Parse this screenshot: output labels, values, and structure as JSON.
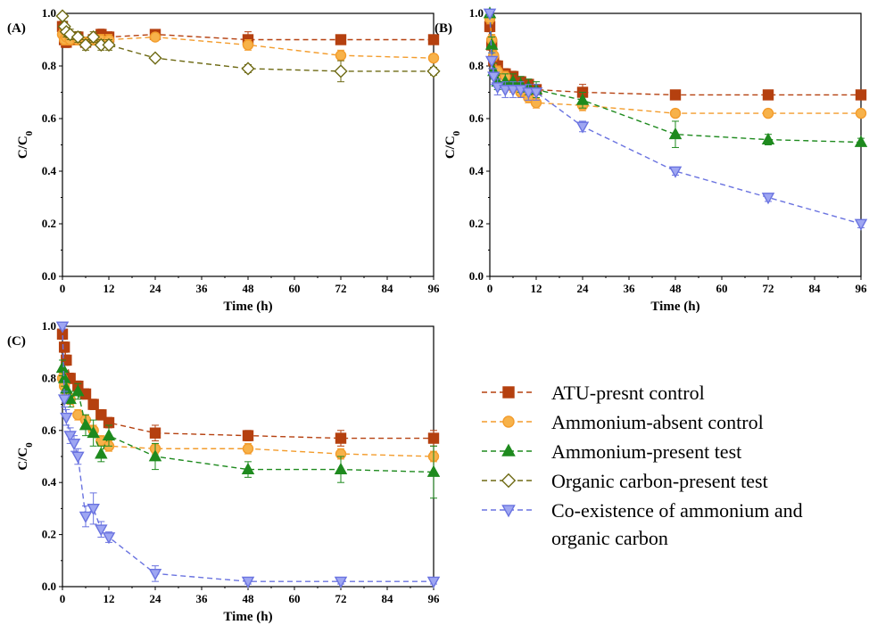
{
  "legend": {
    "items": [
      {
        "key": "atu",
        "label": "ATU-presnt control",
        "color": "#b5400f",
        "fill": "#b5400f",
        "marker": "square"
      },
      {
        "key": "absent",
        "label": "Ammonium-absent control",
        "color": "#f39c2c",
        "fill": "#f7b24a",
        "marker": "circle"
      },
      {
        "key": "present",
        "label": "Ammonium-present test",
        "color": "#1e8a1e",
        "fill": "#1e8a1e",
        "marker": "triangle-up"
      },
      {
        "key": "organic",
        "label": "Organic carbon-present test",
        "color": "#6e6a14",
        "fill": "none",
        "marker": "diamond"
      },
      {
        "key": "coexist",
        "label": "Co-existence of ammonium and organic carbon",
        "label_lines": [
          "Co-existence of ammonium and",
          "organic carbon"
        ],
        "color": "#6a73e0",
        "fill": "#9ea6f2",
        "marker": "triangle-down"
      }
    ]
  },
  "chart_data": [
    {
      "panel": "(A)",
      "type": "line",
      "xlabel": "Time (h)",
      "ylabel": "C/C0",
      "xlim": [
        0,
        96
      ],
      "ylim": [
        0,
        1.0
      ],
      "xticks": [
        0,
        12,
        24,
        36,
        48,
        60,
        72,
        84,
        96
      ],
      "yticks": [
        0.0,
        0.2,
        0.4,
        0.6,
        0.8,
        1.0
      ],
      "ytick_labels": [
        "0.0",
        "0.2",
        "0.4",
        "0.6",
        "0.8",
        "1.0"
      ],
      "series": [
        {
          "key": "atu",
          "points": [
            [
              0,
              0.95
            ],
            [
              0.5,
              0.9
            ],
            [
              1,
              0.89
            ],
            [
              2,
              0.9
            ],
            [
              4,
              0.91
            ],
            [
              6,
              0.89
            ],
            [
              8,
              0.9
            ],
            [
              10,
              0.92
            ],
            [
              12,
              0.91
            ],
            [
              24,
              0.92
            ],
            [
              48,
              0.9
            ],
            [
              72,
              0.9
            ],
            [
              96,
              0.9
            ]
          ],
          "errors": [
            0.02,
            0.02,
            0.02,
            0.02,
            0.02,
            0.02,
            0.02,
            0.02,
            0.02,
            0.015,
            0.03,
            0.015,
            0.015
          ]
        },
        {
          "key": "absent",
          "points": [
            [
              0,
              0.92
            ],
            [
              0.5,
              0.9
            ],
            [
              1,
              0.91
            ],
            [
              2,
              0.9
            ],
            [
              4,
              0.9
            ],
            [
              6,
              0.89
            ],
            [
              8,
              0.9
            ],
            [
              10,
              0.9
            ],
            [
              12,
              0.9
            ],
            [
              24,
              0.91
            ],
            [
              48,
              0.88
            ],
            [
              72,
              0.84
            ],
            [
              96,
              0.83
            ]
          ],
          "errors": [
            0.02,
            0.02,
            0.02,
            0.02,
            0.02,
            0.02,
            0.02,
            0.02,
            0.02,
            0.015,
            0.02,
            0.02,
            0.015
          ]
        },
        {
          "key": "organic",
          "points": [
            [
              0,
              0.99
            ],
            [
              0.5,
              0.95
            ],
            [
              1,
              0.93
            ],
            [
              2,
              0.92
            ],
            [
              4,
              0.91
            ],
            [
              6,
              0.88
            ],
            [
              8,
              0.91
            ],
            [
              10,
              0.88
            ],
            [
              12,
              0.88
            ],
            [
              24,
              0.83
            ],
            [
              48,
              0.79
            ],
            [
              72,
              0.78
            ],
            [
              96,
              0.78
            ]
          ],
          "errors": [
            0.01,
            0.02,
            0.02,
            0.02,
            0.02,
            0.02,
            0.02,
            0.02,
            0.02,
            0.01,
            0.015,
            0.04,
            0.015
          ]
        }
      ]
    },
    {
      "panel": "(B)",
      "type": "line",
      "xlabel": "Time (h)",
      "ylabel": "C/C0",
      "xlim": [
        0,
        96
      ],
      "ylim": [
        0,
        1.0
      ],
      "xticks": [
        0,
        12,
        24,
        36,
        48,
        60,
        72,
        84,
        96
      ],
      "yticks": [
        0.0,
        0.2,
        0.4,
        0.6,
        0.8,
        1.0
      ],
      "ytick_labels": [
        "0.0",
        "0.2",
        "0.4",
        "0.6",
        "0.8",
        "1.0"
      ],
      "series": [
        {
          "key": "atu",
          "points": [
            [
              0,
              0.95
            ],
            [
              0.5,
              0.88
            ],
            [
              1,
              0.82
            ],
            [
              2,
              0.8
            ],
            [
              4,
              0.77
            ],
            [
              6,
              0.76
            ],
            [
              8,
              0.74
            ],
            [
              10,
              0.73
            ],
            [
              12,
              0.71
            ],
            [
              24,
              0.7
            ],
            [
              48,
              0.69
            ],
            [
              72,
              0.69
            ],
            [
              96,
              0.69
            ]
          ],
          "errors": [
            0.02,
            0.02,
            0.02,
            0.02,
            0.02,
            0.02,
            0.02,
            0.02,
            0.02,
            0.03,
            0.015,
            0.015,
            0.015
          ]
        },
        {
          "key": "absent",
          "points": [
            [
              0,
              0.98
            ],
            [
              0.5,
              0.9
            ],
            [
              1,
              0.84
            ],
            [
              2,
              0.78
            ],
            [
              4,
              0.76
            ],
            [
              6,
              0.72
            ],
            [
              8,
              0.7
            ],
            [
              10,
              0.68
            ],
            [
              12,
              0.66
            ],
            [
              24,
              0.65
            ],
            [
              48,
              0.62
            ],
            [
              72,
              0.62
            ],
            [
              96,
              0.62
            ]
          ],
          "errors": [
            0.02,
            0.02,
            0.02,
            0.02,
            0.02,
            0.02,
            0.02,
            0.02,
            0.02,
            0.02,
            0.015,
            0.015,
            0.015
          ]
        },
        {
          "key": "present",
          "points": [
            [
              0,
              1.0
            ],
            [
              0.5,
              0.88
            ],
            [
              1,
              0.78
            ],
            [
              2,
              0.74
            ],
            [
              4,
              0.74
            ],
            [
              6,
              0.74
            ],
            [
              8,
              0.73
            ],
            [
              10,
              0.72
            ],
            [
              12,
              0.71
            ],
            [
              24,
              0.67
            ],
            [
              48,
              0.54
            ],
            [
              72,
              0.52
            ],
            [
              96,
              0.51
            ]
          ],
          "errors": [
            0.01,
            0.03,
            0.03,
            0.03,
            0.03,
            0.03,
            0.03,
            0.03,
            0.03,
            0.03,
            0.05,
            0.02,
            0.015
          ]
        },
        {
          "key": "coexist",
          "points": [
            [
              0,
              1.0
            ],
            [
              0.5,
              0.82
            ],
            [
              1,
              0.76
            ],
            [
              2,
              0.72
            ],
            [
              4,
              0.71
            ],
            [
              6,
              0.71
            ],
            [
              8,
              0.71
            ],
            [
              10,
              0.7
            ],
            [
              12,
              0.7
            ],
            [
              24,
              0.57
            ],
            [
              48,
              0.4
            ],
            [
              72,
              0.3
            ],
            [
              96,
              0.2
            ]
          ],
          "errors": [
            0.01,
            0.03,
            0.03,
            0.03,
            0.03,
            0.03,
            0.03,
            0.03,
            0.03,
            0.02,
            0.015,
            0.015,
            0.015
          ]
        }
      ]
    },
    {
      "panel": "(C)",
      "type": "line",
      "xlabel": "Time (h)",
      "ylabel": "C/C0",
      "xlim": [
        0,
        96
      ],
      "ylim": [
        0,
        1.0
      ],
      "xticks": [
        0,
        12,
        24,
        36,
        48,
        60,
        72,
        84,
        96
      ],
      "yticks": [
        0.0,
        0.2,
        0.4,
        0.6,
        0.8,
        1.0
      ],
      "ytick_labels": [
        "0.0",
        "0.2",
        "0.4",
        "0.6",
        "0.8",
        "1.0"
      ],
      "series": [
        {
          "key": "atu",
          "points": [
            [
              0,
              0.97
            ],
            [
              0.5,
              0.92
            ],
            [
              1,
              0.87
            ],
            [
              2,
              0.8
            ],
            [
              4,
              0.77
            ],
            [
              6,
              0.74
            ],
            [
              8,
              0.7
            ],
            [
              10,
              0.66
            ],
            [
              12,
              0.63
            ],
            [
              24,
              0.59
            ],
            [
              48,
              0.58
            ],
            [
              72,
              0.57
            ],
            [
              96,
              0.57
            ]
          ],
          "errors": [
            0.02,
            0.02,
            0.02,
            0.02,
            0.02,
            0.02,
            0.02,
            0.02,
            0.02,
            0.03,
            0.02,
            0.03,
            0.03
          ]
        },
        {
          "key": "absent",
          "points": [
            [
              0,
              0.8
            ],
            [
              0.5,
              0.77
            ],
            [
              1,
              0.73
            ],
            [
              2,
              0.72
            ],
            [
              4,
              0.66
            ],
            [
              6,
              0.64
            ],
            [
              8,
              0.6
            ],
            [
              10,
              0.56
            ],
            [
              12,
              0.54
            ],
            [
              24,
              0.53
            ],
            [
              48,
              0.53
            ],
            [
              72,
              0.51
            ],
            [
              96,
              0.5
            ]
          ],
          "errors": [
            0.02,
            0.02,
            0.02,
            0.02,
            0.02,
            0.02,
            0.02,
            0.02,
            0.02,
            0.02,
            0.02,
            0.02,
            0.02
          ]
        },
        {
          "key": "present",
          "points": [
            [
              0,
              0.84
            ],
            [
              0.5,
              0.8
            ],
            [
              1,
              0.76
            ],
            [
              2,
              0.72
            ],
            [
              4,
              0.75
            ],
            [
              6,
              0.62
            ],
            [
              8,
              0.59
            ],
            [
              10,
              0.51
            ],
            [
              12,
              0.58
            ],
            [
              24,
              0.5
            ],
            [
              48,
              0.45
            ],
            [
              72,
              0.45
            ],
            [
              96,
              0.44
            ]
          ],
          "errors": [
            0.03,
            0.03,
            0.03,
            0.03,
            0.03,
            0.04,
            0.05,
            0.03,
            0.04,
            0.05,
            0.03,
            0.05,
            0.1
          ]
        },
        {
          "key": "coexist",
          "points": [
            [
              0,
              1.0
            ],
            [
              0.5,
              0.72
            ],
            [
              1,
              0.65
            ],
            [
              2,
              0.58
            ],
            [
              3,
              0.55
            ],
            [
              4,
              0.5
            ],
            [
              6,
              0.27
            ],
            [
              8,
              0.3
            ],
            [
              10,
              0.22
            ],
            [
              12,
              0.19
            ],
            [
              24,
              0.05
            ],
            [
              48,
              0.02
            ],
            [
              72,
              0.02
            ],
            [
              96,
              0.02
            ]
          ],
          "errors": [
            0.01,
            0.03,
            0.03,
            0.03,
            0.03,
            0.03,
            0.04,
            0.06,
            0.03,
            0.02,
            0.03,
            0.01,
            0.01,
            0.01
          ]
        }
      ]
    }
  ]
}
